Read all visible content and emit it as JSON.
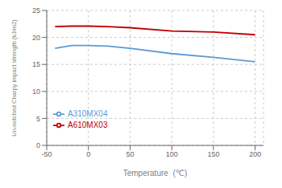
{
  "chart_data": {
    "type": "line",
    "xlabel": "Temperature  (℃)",
    "ylabel": "Un-notched Charpy impact strength (kJ/m2)",
    "x": [
      -40,
      -20,
      0,
      23,
      50,
      100,
      150,
      200
    ],
    "series": [
      {
        "name": "A310MX04",
        "color": "#5B9BD5",
        "values": [
          18.0,
          18.5,
          18.5,
          18.4,
          18.0,
          17.0,
          16.3,
          15.5
        ]
      },
      {
        "name": "A610MX03",
        "color": "#C00000",
        "values": [
          22.0,
          22.1,
          22.1,
          22.0,
          21.8,
          21.2,
          21.0,
          20.5
        ]
      }
    ],
    "xlim": [
      -50,
      210
    ],
    "ylim": [
      0,
      25
    ],
    "xticks": [
      -50,
      0,
      50,
      100,
      150,
      200
    ],
    "yticks": [
      0,
      5,
      10,
      15,
      20,
      25
    ],
    "grid": true,
    "legend": "lower left"
  }
}
